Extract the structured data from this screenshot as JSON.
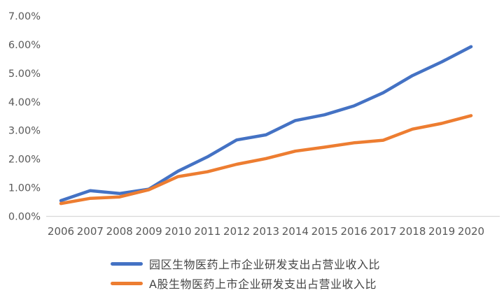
{
  "chart_data": {
    "type": "line",
    "title": "",
    "xlabel": "",
    "ylabel": "",
    "categories": [
      "2006",
      "2007",
      "2008",
      "2009",
      "2010",
      "2011",
      "2012",
      "2013",
      "2014",
      "2015",
      "2016",
      "2017",
      "2018",
      "2019",
      "2020"
    ],
    "series": [
      {
        "name": "园区生物医药上市企业研发支出占营业收入比",
        "color": "#4472C4",
        "values": [
          0.55,
          0.9,
          0.8,
          0.95,
          1.58,
          2.08,
          2.67,
          2.85,
          3.35,
          3.55,
          3.86,
          4.32,
          4.92,
          5.4,
          5.93
        ]
      },
      {
        "name": "A股生物医药上市企业研发支出占营业收入比",
        "color": "#ED7D31",
        "values": [
          0.45,
          0.63,
          0.68,
          0.93,
          1.39,
          1.56,
          1.82,
          2.02,
          2.28,
          2.42,
          2.57,
          2.66,
          3.05,
          3.25,
          3.52
        ]
      }
    ],
    "y_ticks": [
      "0.00%",
      "1.00%",
      "2.00%",
      "3.00%",
      "4.00%",
      "5.00%",
      "6.00%",
      "7.00%"
    ],
    "ylim": [
      0,
      7
    ],
    "grid": false,
    "legend_position": "bottom",
    "axis_line_color": "#D9D9D9",
    "tick_label_color": "#595959",
    "line_width": 4.5
  }
}
